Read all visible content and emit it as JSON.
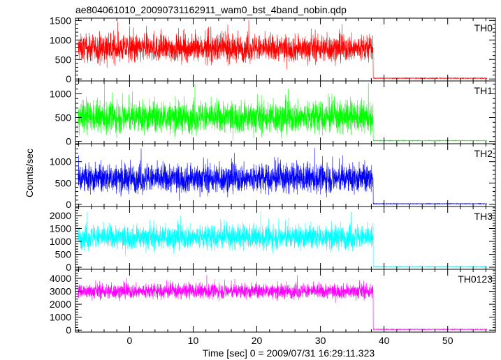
{
  "chart_data": {
    "type": "line",
    "title": "ae804061010_20090731162911_wam0_bst_4band_nobin.qdp",
    "xlabel": "Time [sec] 0 = 2009/07/31 16:29:11.323",
    "ylabel": "Counts/sec",
    "xlim": [
      -8.5,
      57.5
    ],
    "xticks": [
      0,
      10,
      20,
      30,
      40,
      50
    ],
    "x_minor_step": 2,
    "burst_end_time": 38.3,
    "grid": false,
    "legend": "none",
    "panels": [
      {
        "label": "TH0",
        "color": "#ff0000",
        "ylim": [
          -50,
          1560
        ],
        "yticks": [
          0,
          500,
          1000,
          1500
        ],
        "y_minor_step": 100,
        "active_mean": 780,
        "active_spread": 310,
        "tail_level": 20
      },
      {
        "label": "TH1",
        "color": "#00ff00",
        "ylim": [
          -50,
          1270
        ],
        "yticks": [
          0,
          500,
          1000
        ],
        "y_minor_step": 100,
        "active_mean": 500,
        "active_spread": 300,
        "tail_level": 15
      },
      {
        "label": "TH2",
        "color": "#0000ff",
        "ylim": [
          -50,
          1420
        ],
        "yticks": [
          0,
          500,
          1000
        ],
        "y_minor_step": 100,
        "active_mean": 600,
        "active_spread": 300,
        "tail_level": 15
      },
      {
        "label": "TH3",
        "color": "#00ffff",
        "ylim": [
          -80,
          2350
        ],
        "yticks": [
          0,
          500,
          1000,
          1500,
          2000
        ],
        "y_minor_step": 100,
        "active_mean": 1150,
        "active_spread": 420,
        "tail_level": 30
      },
      {
        "label": "TH0123",
        "color": "#ff00ff",
        "ylim": [
          -150,
          4700
        ],
        "yticks": [
          0,
          1000,
          2000,
          3000,
          4000
        ],
        "y_minor_step": 200,
        "active_mean": 3000,
        "active_spread": 520,
        "tail_level": 60
      }
    ]
  }
}
